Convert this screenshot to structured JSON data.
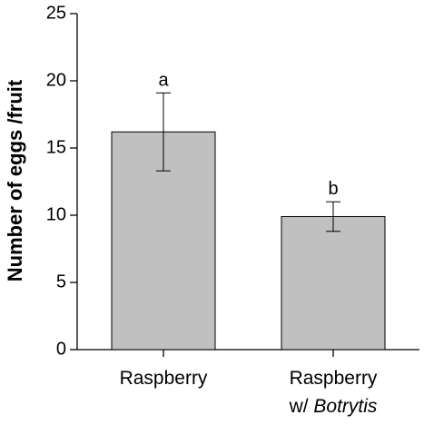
{
  "chart_data": {
    "type": "bar",
    "title": "",
    "xlabel": "",
    "ylabel": "Number of eggs /fruit",
    "ylim": [
      0,
      25
    ],
    "yticks": [
      0,
      5,
      10,
      15,
      20,
      25
    ],
    "grid": false,
    "categories": [
      {
        "line1": "Raspberry",
        "line2_normal": "",
        "line2_italic": ""
      },
      {
        "line1": "Raspberry",
        "line2_normal": "w/ ",
        "line2_italic": "Botrytis"
      }
    ],
    "values": [
      16.2,
      9.9
    ],
    "error_upper": [
      19.1,
      11.0
    ],
    "error_lower": [
      13.3,
      8.8
    ],
    "significance_labels": [
      "a",
      "b"
    ],
    "bar_color": "#c0c0c0"
  }
}
